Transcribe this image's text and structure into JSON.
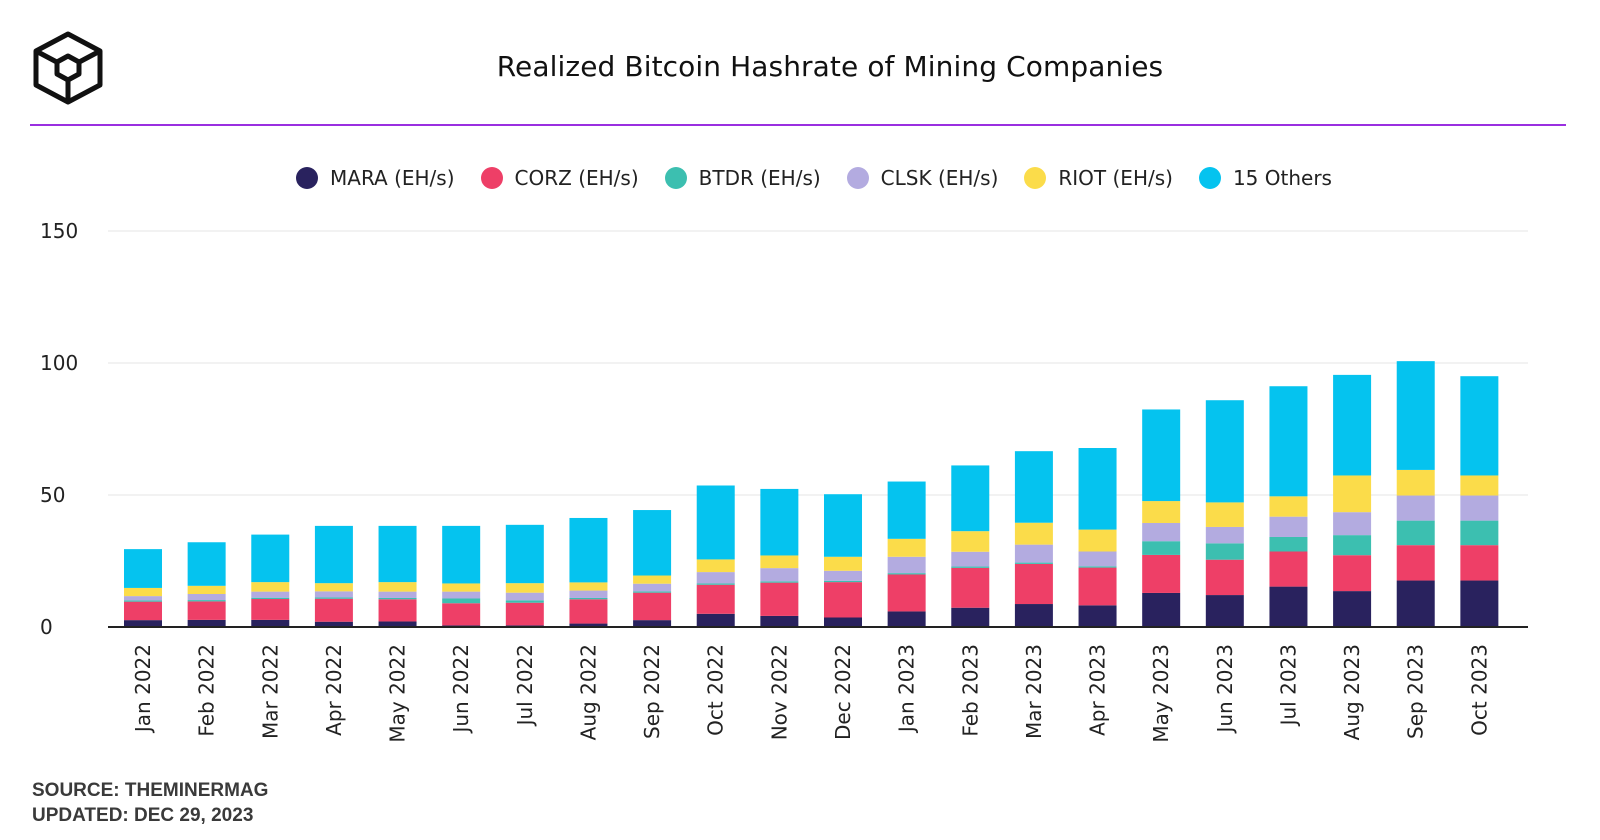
{
  "title": "Realized Bitcoin Hashrate of Mining Companies",
  "footer": {
    "source": "SOURCE: THEMINERMAG",
    "updated": "UPDATED: DEC 29, 2023"
  },
  "colors": {
    "accent_rule": "#9a2fe0",
    "MARA": "#29225e",
    "CORZ": "#ee3f67",
    "BTDR": "#3cbfb0",
    "CLSK": "#b3abe0",
    "RIOT": "#fbdc4a",
    "Others": "#05c3ef"
  },
  "legend": [
    {
      "label": "MARA (EH/s)",
      "color": "#29225e"
    },
    {
      "label": "CORZ (EH/s)",
      "color": "#ee3f67"
    },
    {
      "label": "BTDR (EH/s)",
      "color": "#3cbfb0"
    },
    {
      "label": "CLSK (EH/s)",
      "color": "#b3abe0"
    },
    {
      "label": "RIOT (EH/s)",
      "color": "#fbdc4a"
    },
    {
      "label": "15 Others",
      "color": "#05c3ef"
    }
  ],
  "chart_data": {
    "type": "bar",
    "stacked": true,
    "title": "Realized Bitcoin Hashrate of Mining Companies",
    "xlabel": "",
    "ylabel": "",
    "ylim": [
      0,
      150
    ],
    "yticks": [
      0,
      50,
      100,
      150
    ],
    "grid": true,
    "legend_position": "top-center",
    "categories": [
      "Jan 2022",
      "Feb 2022",
      "Mar 2022",
      "Apr 2022",
      "May 2022",
      "Jun 2022",
      "Jul 2022",
      "Aug 2022",
      "Sep 2022",
      "Oct 2022",
      "Nov 2022",
      "Dec 2022",
      "Jan 2023",
      "Feb 2023",
      "Mar 2023",
      "Apr 2023",
      "May 2023",
      "Jun 2023",
      "Jul 2023",
      "Aug 2023",
      "Sep 2023",
      "Oct 2023"
    ],
    "series": [
      {
        "name": "MARA (EH/s)",
        "color": "#29225e",
        "values": [
          2.6,
          2.7,
          2.7,
          2.0,
          2.1,
          0.6,
          0.6,
          1.3,
          2.6,
          5.0,
          4.2,
          3.6,
          5.9,
          7.3,
          8.7,
          8.2,
          12.9,
          12.1,
          15.3,
          13.6,
          17.6,
          17.6
        ]
      },
      {
        "name": "CORZ (EH/s)",
        "color": "#ee3f67",
        "values": [
          7.0,
          7.0,
          7.9,
          8.7,
          8.4,
          8.4,
          8.6,
          9.2,
          10.4,
          11.0,
          12.6,
          13.4,
          14.0,
          15.1,
          15.2,
          14.3,
          14.4,
          13.4,
          13.3,
          13.6,
          13.4,
          13.4
        ]
      },
      {
        "name": "BTDR (EH/s)",
        "color": "#3cbfb0",
        "values": [
          0.5,
          0.5,
          0.5,
          0.5,
          0.5,
          1.8,
          0.9,
          0.5,
          0.5,
          0.5,
          0.5,
          0.5,
          0.5,
          0.5,
          0.5,
          0.5,
          5.2,
          6.2,
          5.5,
          7.6,
          9.3,
          9.3
        ]
      },
      {
        "name": "CLSK (EH/s)",
        "color": "#b3abe0",
        "values": [
          1.6,
          2.3,
          2.3,
          2.3,
          2.4,
          2.6,
          2.9,
          2.8,
          2.9,
          4.3,
          5.0,
          3.8,
          6.2,
          5.6,
          6.8,
          5.6,
          6.9,
          6.2,
          7.7,
          8.7,
          9.5,
          9.5
        ]
      },
      {
        "name": "RIOT (EH/s)",
        "color": "#fbdc4a",
        "values": [
          3.1,
          3.1,
          3.6,
          3.1,
          3.6,
          3.1,
          3.6,
          3.1,
          3.1,
          4.8,
          4.8,
          5.3,
          6.8,
          7.8,
          8.3,
          8.3,
          8.3,
          9.3,
          7.7,
          13.9,
          9.7,
          7.6
        ]
      },
      {
        "name": "15 Others",
        "color": "#05c3ef",
        "values": [
          14.7,
          16.5,
          18.0,
          21.7,
          21.3,
          21.8,
          22.1,
          24.4,
          24.8,
          28.0,
          25.2,
          23.7,
          21.7,
          24.9,
          27.1,
          30.9,
          34.7,
          38.7,
          41.7,
          38.1,
          41.2,
          37.6
        ]
      }
    ]
  }
}
